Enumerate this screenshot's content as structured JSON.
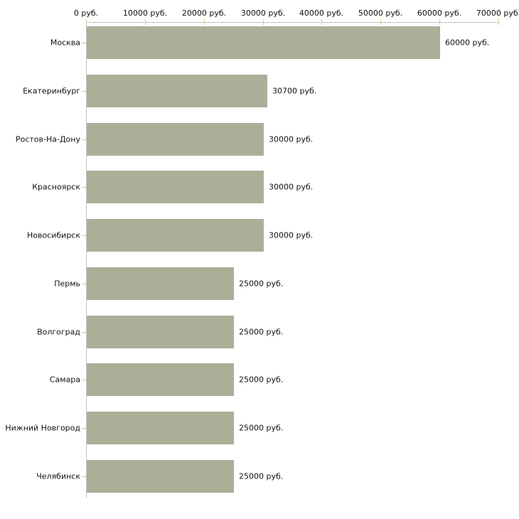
{
  "chart_data": {
    "type": "bar",
    "orientation": "horizontal",
    "title": "",
    "xlabel": "",
    "ylabel": "",
    "categories": [
      "Москва",
      "Екатеринбург",
      "Ростов-На-Дону",
      "Красноярск",
      "Новосибирск",
      "Пермь",
      "Волгоград",
      "Самара",
      "Нижний Новгород",
      "Челябинск"
    ],
    "values": [
      60000,
      30700,
      30000,
      30000,
      30000,
      25000,
      25000,
      25000,
      25000,
      25000
    ],
    "value_labels": [
      "60000 руб.",
      "30700 руб.",
      "30000 руб.",
      "30000 руб.",
      "30000 руб.",
      "25000 руб.",
      "25000 руб.",
      "25000 руб.",
      "25000 руб.",
      "25000 руб."
    ],
    "x_axis": {
      "position": "top",
      "range": [
        0,
        70000
      ],
      "ticks": [
        0,
        10000,
        20000,
        30000,
        40000,
        50000,
        60000,
        70000
      ],
      "tick_labels": [
        "0 руб.",
        "10000 руб.",
        "20000 руб.",
        "30000 руб.",
        "40000 руб.",
        "50000 руб.",
        "60000 руб.",
        "70000 руб."
      ]
    },
    "grid": false,
    "legend": false,
    "colors": {
      "bar": "#abaf98",
      "axis_line": "#c3c3c3",
      "tick_mark": "#cfcb9b",
      "text": "#111111",
      "background": "#ffffff"
    }
  }
}
